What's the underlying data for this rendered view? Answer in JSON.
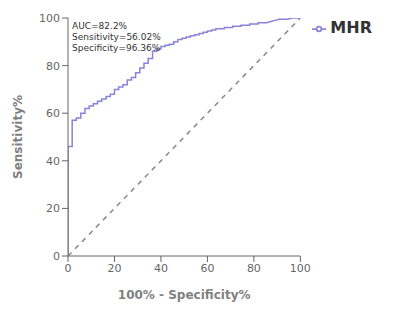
{
  "chart_data": {
    "type": "line",
    "xlabel": "100% - Specificity%",
    "ylabel": "Sensitivity%",
    "annotation": "AUC=82.2%\nSensitivity=56.02%\nSpecificity=96.36%",
    "xlim": [
      0,
      100
    ],
    "ylim": [
      0,
      100
    ],
    "xticks": [
      0,
      20,
      40,
      60,
      80,
      100
    ],
    "yticks": [
      0,
      20,
      40,
      60,
      80,
      100
    ],
    "legend": "right",
    "series": [
      {
        "color": "#888888",
        "line_style": "dashed",
        "x": [
          0,
          100
        ],
        "values": [
          0,
          100
        ]
      },
      {
        "name": "MHR",
        "color": "#8884d8",
        "line_style": "solid",
        "x": [
          0,
          0,
          1.8,
          1.8,
          3.6,
          3.6,
          5.5,
          5.5,
          7.3,
          7.3,
          9.1,
          9.1,
          10.9,
          10.9,
          12.7,
          12.7,
          14.5,
          14.5,
          16.4,
          16.4,
          18.2,
          18.2,
          20.0,
          20.0,
          21.8,
          21.8,
          23.6,
          23.6,
          25.5,
          25.5,
          27.3,
          27.3,
          29.1,
          29.1,
          30.9,
          30.9,
          32.7,
          32.7,
          34.5,
          34.5,
          36.4,
          36.4,
          38.2,
          38.2,
          40.0,
          40.0,
          41.8,
          41.8,
          43.6,
          43.6,
          45.5,
          45.5,
          47.3,
          47.3,
          49.1,
          49.1,
          50.9,
          50.9,
          52.7,
          52.7,
          54.5,
          54.5,
          56.4,
          56.4,
          58.2,
          58.2,
          60.0,
          60.0,
          61.8,
          61.8,
          63.6,
          63.6,
          65.5,
          65.5,
          67.3,
          67.3,
          69.1,
          69.1,
          70.9,
          70.9,
          72.7,
          72.7,
          74.5,
          74.5,
          76.4,
          76.4,
          78.2,
          78.2,
          80.0,
          80.0,
          81.8,
          81.8,
          83.6,
          83.6,
          85.5,
          85.5,
          87.3,
          87.3,
          89.1,
          89.1,
          90.9,
          90.9,
          92.7,
          92.7,
          94.5,
          94.5,
          96.4,
          96.4,
          98.2,
          98.2,
          100.0
        ],
        "values": [
          0,
          46.0,
          46.0,
          57.0,
          57.0,
          58.0,
          58.0,
          60.0,
          60.0,
          62.0,
          62.0,
          63.0,
          63.0,
          64.0,
          64.0,
          65.0,
          65.0,
          66.0,
          66.0,
          67.0,
          67.0,
          68.0,
          68.0,
          70.0,
          70.0,
          71.0,
          71.0,
          72.0,
          72.0,
          74.0,
          74.0,
          75.0,
          75.0,
          77.0,
          77.0,
          79.0,
          79.0,
          81.0,
          81.0,
          83.0,
          83.0,
          86.0,
          86.0,
          87.0,
          87.0,
          88.0,
          88.0,
          88.5,
          88.5,
          89.0,
          89.0,
          90.0,
          90.0,
          91.0,
          91.0,
          91.5,
          91.5,
          92.0,
          92.0,
          92.5,
          92.5,
          93.0,
          93.0,
          93.5,
          93.5,
          94.0,
          94.0,
          94.5,
          94.5,
          95.0,
          95.0,
          95.5,
          95.5,
          95.5,
          95.5,
          96.0,
          96.0,
          96.0,
          96.0,
          96.5,
          96.5,
          96.5,
          96.5,
          97.0,
          97.0,
          97.0,
          97.0,
          97.5,
          97.5,
          97.5,
          97.5,
          98.0,
          98.0,
          98.0,
          98.0,
          98.0,
          98.5,
          98.5,
          99.0,
          99.0,
          99.5,
          99.5,
          99.5,
          99.5,
          99.5,
          99.5,
          100.0,
          100.0,
          100.0,
          100.0,
          100.0
        ]
      }
    ]
  }
}
